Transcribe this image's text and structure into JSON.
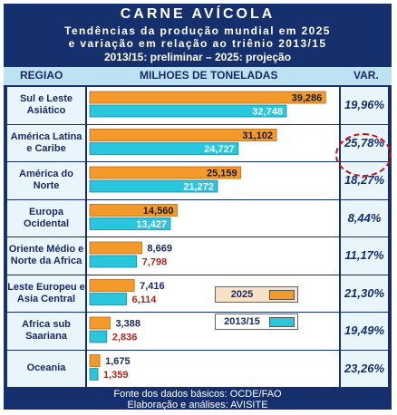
{
  "title": "CARNE AVÍCOLA",
  "subtitle1": "Tendências da produção mundial em 2025",
  "subtitle2": "e variação em relação ao triênio 2013/15",
  "subtitle3": "2013/15: preliminar – 2025: projeção",
  "headers": {
    "region": "REGIAO",
    "middle": "MILHOES DE TONELADAS",
    "var": "VAR."
  },
  "footer": {
    "line1": "Fonte dos dados básicos: OCDE/FAO",
    "line2": "Elaboração e análises: AVISITE"
  },
  "colors": {
    "s2025": "#f39a2b",
    "s2013": "#29c6de",
    "frame": "#16306e",
    "highlight": "#cc1111"
  },
  "chart_data": {
    "type": "bar",
    "orientation": "horizontal",
    "categories": [
      "Sul e Leste Asiático",
      "América Latina e Caribe",
      "América do Norte",
      "Europa Ocidental",
      "Oriente Médio e Norte da Africa",
      "Leste Europeu e Asia Central",
      "Africa sub Saariana",
      "Oceania"
    ],
    "series": [
      {
        "name": "2025",
        "values": [
          39286,
          31102,
          25159,
          14560,
          8669,
          7416,
          3388,
          1675
        ],
        "labels": [
          "39,286",
          "31,102",
          "25,159",
          "14,560",
          "8,669",
          "7,416",
          "3,388",
          "1,675"
        ]
      },
      {
        "name": "2013/15",
        "values": [
          32748,
          24727,
          21272,
          13427,
          7798,
          6114,
          2836,
          1359
        ],
        "labels": [
          "32,748",
          "24,727",
          "21,272",
          "13,427",
          "7,798",
          "6,114",
          "2,836",
          "1,359"
        ]
      }
    ],
    "variation": [
      "19,96%",
      "25,78%",
      "18,27%",
      "8,44%",
      "11,17%",
      "21,30%",
      "19,49%",
      "23,26%"
    ],
    "highlighted_row": 1,
    "legend": [
      "2025",
      "2013/15"
    ],
    "ylabel": "MILHOES DE TONELADAS"
  }
}
